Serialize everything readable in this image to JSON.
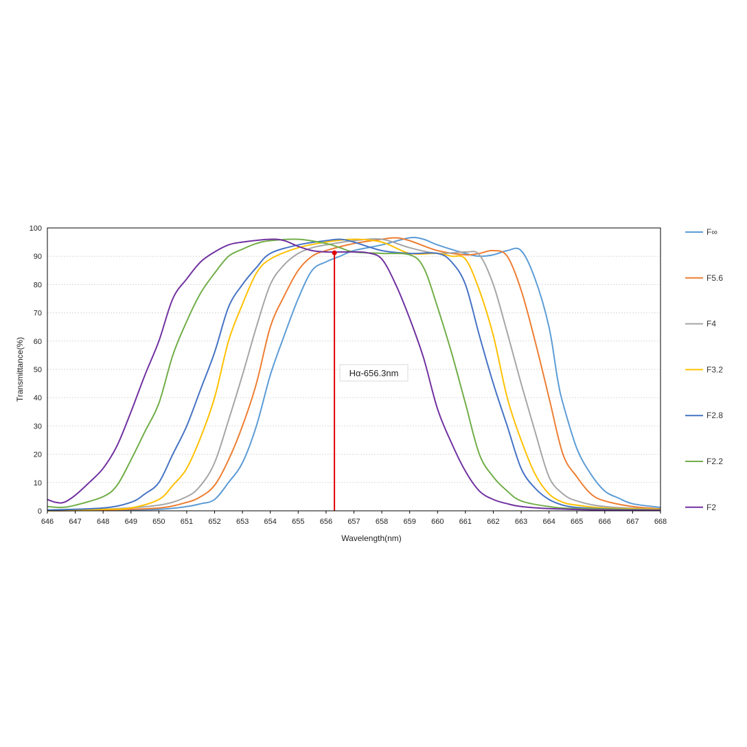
{
  "chart_data": {
    "type": "line",
    "title": "",
    "xlabel": "Wavelength(nm)",
    "ylabel": "Transmittance(%)",
    "xlim": [
      646,
      668
    ],
    "ylim": [
      0,
      100
    ],
    "xticks": [
      646,
      647,
      648,
      649,
      650,
      651,
      652,
      653,
      654,
      655,
      656,
      657,
      658,
      659,
      660,
      661,
      662,
      663,
      664,
      665,
      666,
      667,
      668
    ],
    "yticks": [
      0,
      10,
      20,
      30,
      40,
      50,
      60,
      70,
      80,
      90,
      100
    ],
    "grid": "horizontal",
    "legend_position": "right",
    "annotation": {
      "label": "Hα-656.3nm",
      "x": 656.3,
      "y": 91.2,
      "color": "#e00000"
    },
    "series": [
      {
        "name": "F∞",
        "color": "#5b9bd5",
        "points": [
          [
            646,
            0
          ],
          [
            648,
            0.2
          ],
          [
            650,
            0.5
          ],
          [
            651,
            1.5
          ],
          [
            651.5,
            2.5
          ],
          [
            652,
            4
          ],
          [
            652.5,
            10
          ],
          [
            653,
            17
          ],
          [
            653.5,
            30
          ],
          [
            654,
            48
          ],
          [
            654.5,
            62
          ],
          [
            655,
            75
          ],
          [
            655.5,
            85
          ],
          [
            656,
            88
          ],
          [
            656.5,
            90
          ],
          [
            657,
            92
          ],
          [
            658,
            94
          ],
          [
            659,
            96.5
          ],
          [
            659.5,
            96
          ],
          [
            660,
            94
          ],
          [
            661,
            91
          ],
          [
            661.5,
            90
          ],
          [
            662,
            90.5
          ],
          [
            662.5,
            92
          ],
          [
            663,
            92
          ],
          [
            663.5,
            82
          ],
          [
            664,
            65
          ],
          [
            664.3,
            47
          ],
          [
            664.5,
            38
          ],
          [
            665,
            22
          ],
          [
            665.5,
            13
          ],
          [
            666,
            7
          ],
          [
            666.5,
            4.5
          ],
          [
            667,
            2.5
          ],
          [
            668,
            1.2
          ]
        ]
      },
      {
        "name": "F5.6",
        "color": "#ed7d31",
        "points": [
          [
            646,
            0
          ],
          [
            648,
            0.3
          ],
          [
            650,
            1
          ],
          [
            651,
            3
          ],
          [
            651.5,
            5
          ],
          [
            652,
            9
          ],
          [
            652.5,
            18
          ],
          [
            653,
            30
          ],
          [
            653.5,
            45
          ],
          [
            654,
            65
          ],
          [
            654.5,
            76
          ],
          [
            655,
            85
          ],
          [
            655.5,
            90
          ],
          [
            656,
            92
          ],
          [
            657,
            94.5
          ],
          [
            658,
            96
          ],
          [
            658.5,
            96.5
          ],
          [
            659,
            95.5
          ],
          [
            660,
            92
          ],
          [
            661,
            90.5
          ],
          [
            661.5,
            91
          ],
          [
            662,
            92
          ],
          [
            662.5,
            90
          ],
          [
            663,
            78
          ],
          [
            663.5,
            60
          ],
          [
            664,
            40
          ],
          [
            664.5,
            20
          ],
          [
            665,
            12
          ],
          [
            665.5,
            6
          ],
          [
            666,
            3.5
          ],
          [
            667,
            1.5
          ],
          [
            668,
            0.7
          ]
        ]
      },
      {
        "name": "F4",
        "color": "#a5a5a5",
        "points": [
          [
            646,
            0
          ],
          [
            648,
            0.5
          ],
          [
            650,
            2
          ],
          [
            651,
            5
          ],
          [
            651.5,
            9
          ],
          [
            652,
            17
          ],
          [
            652.5,
            32
          ],
          [
            653,
            48
          ],
          [
            653.5,
            65
          ],
          [
            654,
            80
          ],
          [
            654.5,
            87
          ],
          [
            655,
            91
          ],
          [
            655.5,
            93
          ],
          [
            656,
            94
          ],
          [
            657,
            95.5
          ],
          [
            658,
            96
          ],
          [
            659,
            93
          ],
          [
            660,
            91
          ],
          [
            661,
            91.5
          ],
          [
            661.5,
            90.5
          ],
          [
            662,
            80
          ],
          [
            662.5,
            63
          ],
          [
            663,
            45
          ],
          [
            663.5,
            28
          ],
          [
            664,
            12
          ],
          [
            664.5,
            6
          ],
          [
            665,
            3.5
          ],
          [
            666,
            1.5
          ],
          [
            668,
            0.5
          ]
        ]
      },
      {
        "name": "F3.2",
        "color": "#ffc000",
        "points": [
          [
            646,
            0
          ],
          [
            648,
            0.5
          ],
          [
            649,
            1
          ],
          [
            650,
            4
          ],
          [
            650.5,
            9
          ],
          [
            651,
            15
          ],
          [
            651.5,
            26
          ],
          [
            652,
            40
          ],
          [
            652.5,
            60
          ],
          [
            653,
            73
          ],
          [
            653.5,
            84
          ],
          [
            654,
            89
          ],
          [
            655,
            93
          ],
          [
            656,
            95
          ],
          [
            657,
            96
          ],
          [
            658,
            95
          ],
          [
            659,
            91
          ],
          [
            660,
            91
          ],
          [
            660.5,
            90
          ],
          [
            661,
            89
          ],
          [
            661.5,
            78
          ],
          [
            662,
            62
          ],
          [
            662.5,
            40
          ],
          [
            663,
            25
          ],
          [
            663.5,
            13
          ],
          [
            664,
            6
          ],
          [
            664.5,
            3
          ],
          [
            665,
            2
          ],
          [
            666,
            1
          ],
          [
            668,
            0.5
          ]
        ]
      },
      {
        "name": "F2.8",
        "color": "#4472c4",
        "points": [
          [
            646,
            0.3
          ],
          [
            648,
            1
          ],
          [
            649,
            3
          ],
          [
            649.5,
            6
          ],
          [
            650,
            10
          ],
          [
            650.5,
            20
          ],
          [
            651,
            30
          ],
          [
            651.5,
            43
          ],
          [
            652,
            56
          ],
          [
            652.5,
            72
          ],
          [
            653,
            80
          ],
          [
            653.5,
            86
          ],
          [
            654,
            91
          ],
          [
            655,
            94
          ],
          [
            656,
            95.5
          ],
          [
            656.5,
            96
          ],
          [
            657,
            95
          ],
          [
            658,
            92
          ],
          [
            659,
            91
          ],
          [
            660,
            91
          ],
          [
            660.5,
            88
          ],
          [
            661,
            80
          ],
          [
            661.5,
            62
          ],
          [
            662,
            45
          ],
          [
            662.5,
            30
          ],
          [
            663,
            15
          ],
          [
            663.5,
            8
          ],
          [
            664,
            4
          ],
          [
            664.5,
            2
          ],
          [
            665,
            1.2
          ],
          [
            666,
            0.7
          ],
          [
            668,
            0.3
          ]
        ]
      },
      {
        "name": "F2.2",
        "color": "#70ad47",
        "points": [
          [
            646,
            1.5
          ],
          [
            646.5,
            1.2
          ],
          [
            647,
            2
          ],
          [
            648,
            5
          ],
          [
            648.5,
            9
          ],
          [
            649,
            18
          ],
          [
            649.5,
            28
          ],
          [
            650,
            38
          ],
          [
            650.5,
            55
          ],
          [
            651,
            67
          ],
          [
            651.5,
            77
          ],
          [
            652,
            84
          ],
          [
            652.5,
            90
          ],
          [
            653,
            92.5
          ],
          [
            653.5,
            94.5
          ],
          [
            654,
            95.5
          ],
          [
            655,
            96
          ],
          [
            656,
            94.5
          ],
          [
            656.5,
            93
          ],
          [
            657,
            91.5
          ],
          [
            658,
            91
          ],
          [
            659,
            90.5
          ],
          [
            659.5,
            86
          ],
          [
            660,
            72
          ],
          [
            660.5,
            56
          ],
          [
            661,
            38
          ],
          [
            661.5,
            20
          ],
          [
            662,
            12
          ],
          [
            662.5,
            7
          ],
          [
            663,
            3.5
          ],
          [
            664,
            1.5
          ],
          [
            665,
            0.8
          ],
          [
            668,
            0.3
          ]
        ]
      },
      {
        "name": "F2",
        "color": "#7030a0",
        "points": [
          [
            646,
            4
          ],
          [
            646.3,
            3
          ],
          [
            646.6,
            3
          ],
          [
            647,
            5.5
          ],
          [
            647.5,
            10
          ],
          [
            648,
            15
          ],
          [
            648.5,
            23
          ],
          [
            649,
            35
          ],
          [
            649.5,
            48
          ],
          [
            650,
            60
          ],
          [
            650.5,
            75
          ],
          [
            651,
            82
          ],
          [
            651.5,
            88
          ],
          [
            652,
            91.5
          ],
          [
            652.5,
            94
          ],
          [
            653,
            95
          ],
          [
            654,
            96
          ],
          [
            654.5,
            95.5
          ],
          [
            655,
            93.5
          ],
          [
            655.5,
            92
          ],
          [
            656,
            91.5
          ],
          [
            656.5,
            91.5
          ],
          [
            657,
            91.5
          ],
          [
            657.5,
            91.2
          ],
          [
            658,
            89
          ],
          [
            658.5,
            80
          ],
          [
            659,
            68
          ],
          [
            659.5,
            54
          ],
          [
            660,
            36
          ],
          [
            660.5,
            24
          ],
          [
            661,
            14
          ],
          [
            661.5,
            7
          ],
          [
            662,
            4
          ],
          [
            662.5,
            2.5
          ],
          [
            663,
            1.5
          ],
          [
            664,
            0.8
          ],
          [
            666,
            0.3
          ],
          [
            668,
            0.2
          ]
        ]
      }
    ]
  }
}
